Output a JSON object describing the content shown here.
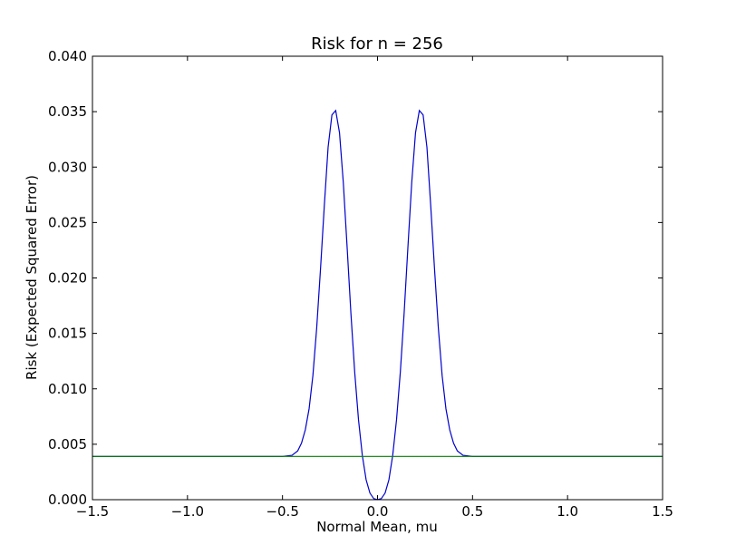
{
  "chart_data": {
    "type": "line",
    "title": "Risk for n = 256",
    "xlabel": "Normal Mean, mu",
    "ylabel": "Risk (Expected Squared Error)",
    "xlim": [
      -1.5,
      1.5
    ],
    "ylim": [
      0.0,
      0.04
    ],
    "x_ticks": [
      -1.5,
      -1.0,
      -0.5,
      0.0,
      0.5,
      1.0,
      1.5
    ],
    "x_tick_labels": [
      "−1.5",
      "−1.0",
      "−0.5",
      "0.0",
      "0.5",
      "1.0",
      "1.5"
    ],
    "y_ticks": [
      0.0,
      0.005,
      0.01,
      0.015,
      0.02,
      0.025,
      0.03,
      0.035,
      0.04
    ],
    "y_tick_labels": [
      "0.000",
      "0.005",
      "0.010",
      "0.015",
      "0.020",
      "0.025",
      "0.030",
      "0.035",
      "0.040"
    ],
    "grid": false,
    "series": [
      {
        "color": "#0000cc",
        "x": [
          -1.5,
          -0.5,
          -0.45,
          -0.42,
          -0.4,
          -0.38,
          -0.36,
          -0.34,
          -0.32,
          -0.3,
          -0.28,
          -0.26,
          -0.24,
          -0.22,
          -0.2,
          -0.18,
          -0.16,
          -0.14,
          -0.12,
          -0.1,
          -0.08,
          -0.06,
          -0.04,
          -0.02,
          0.0,
          0.02,
          0.04,
          0.06,
          0.08,
          0.1,
          0.12,
          0.14,
          0.16,
          0.18,
          0.2,
          0.22,
          0.24,
          0.26,
          0.28,
          0.3,
          0.32,
          0.34,
          0.36,
          0.38,
          0.4,
          0.42,
          0.45,
          0.5,
          1.5
        ],
        "y": [
          0.0039,
          0.0039,
          0.004,
          0.0044,
          0.0051,
          0.0063,
          0.0082,
          0.0112,
          0.0155,
          0.0208,
          0.0265,
          0.0318,
          0.0347,
          0.0351,
          0.0331,
          0.0286,
          0.0228,
          0.0168,
          0.0115,
          0.0072,
          0.004,
          0.0018,
          0.0006,
          0.0001,
          0.0,
          0.0001,
          0.0006,
          0.0018,
          0.004,
          0.0072,
          0.0115,
          0.0168,
          0.0228,
          0.0286,
          0.0331,
          0.0351,
          0.0347,
          0.0318,
          0.0265,
          0.0208,
          0.0155,
          0.0112,
          0.0082,
          0.0063,
          0.0051,
          0.0044,
          0.004,
          0.0039,
          0.0039
        ]
      },
      {
        "color": "#008000",
        "x": [
          -1.5,
          1.5
        ],
        "y": [
          0.0039,
          0.0039
        ]
      }
    ]
  }
}
